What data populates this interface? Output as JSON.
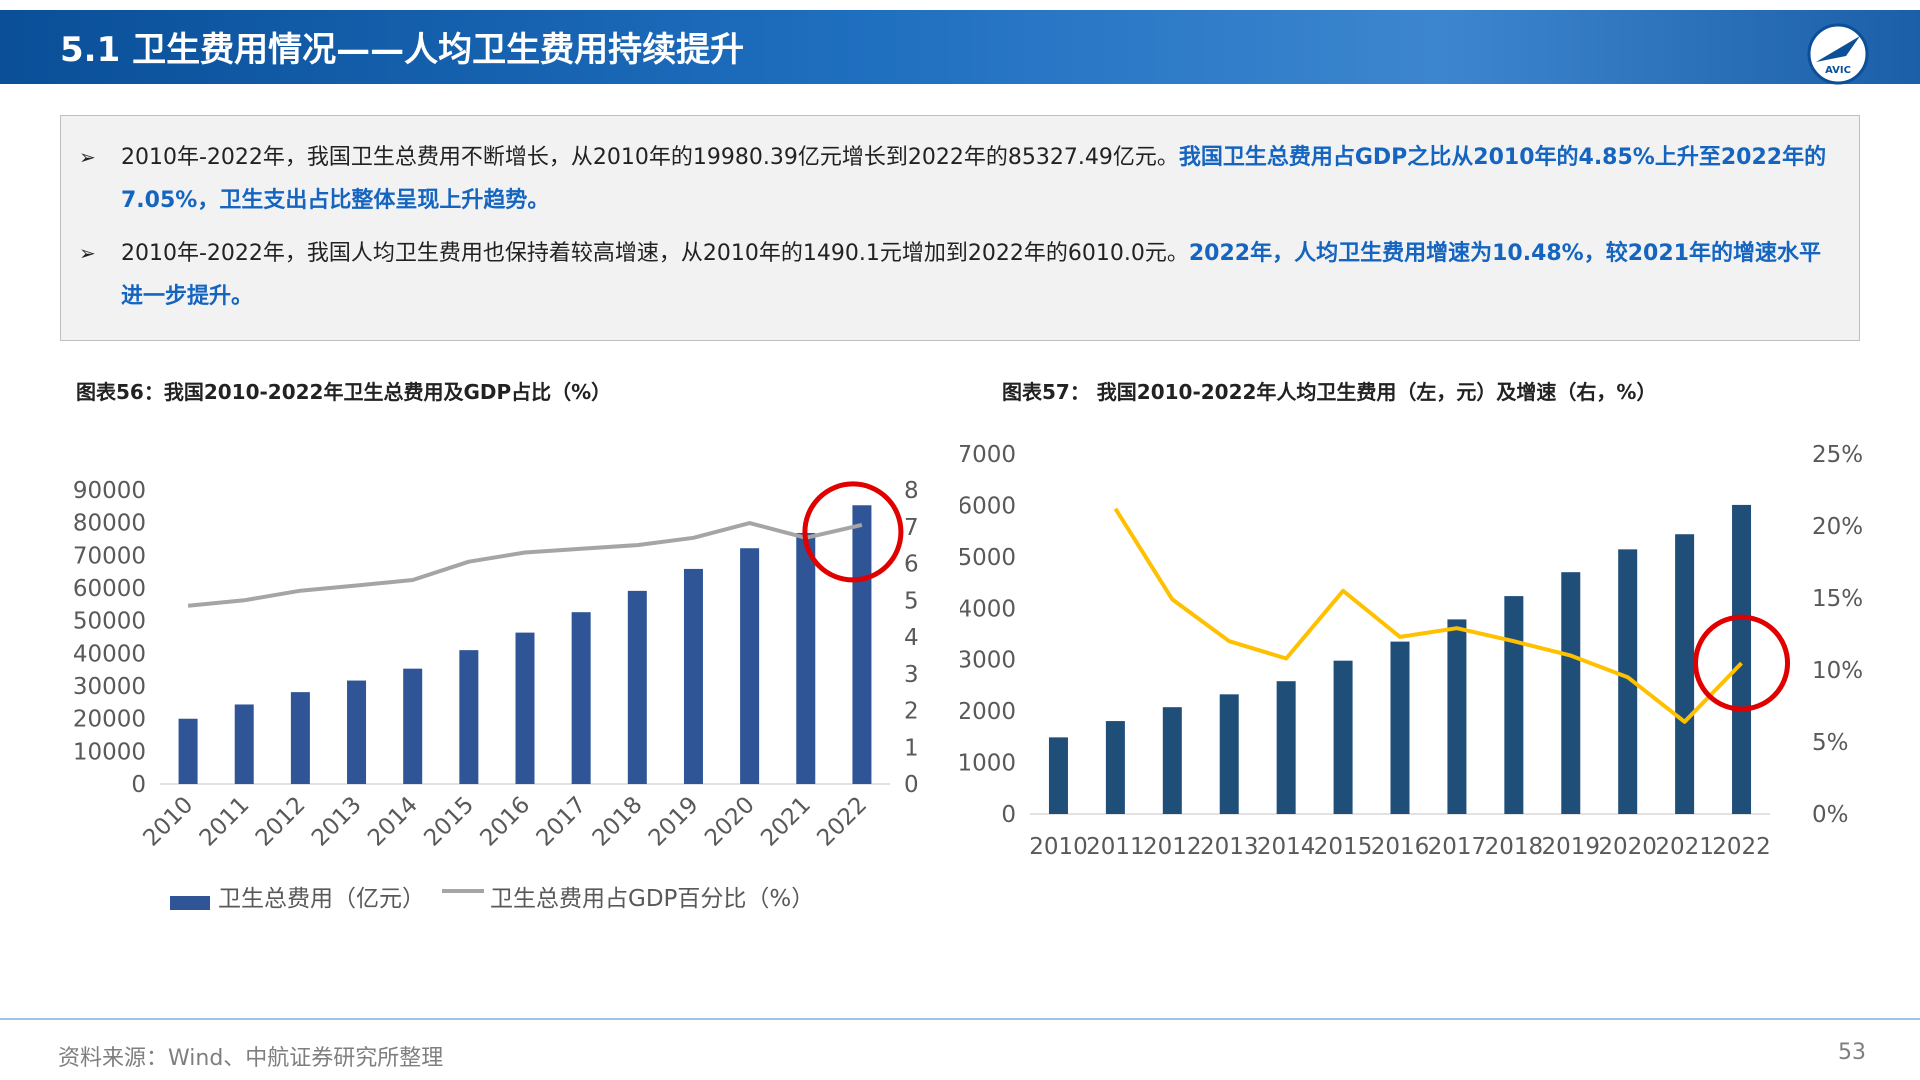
{
  "header": {
    "title": "5.1 卫生费用情况——人均卫生费用持续提升",
    "logo_text": "AVIC"
  },
  "summary": {
    "bullet_mark": "➢",
    "bullets": [
      {
        "normal": "2010年-2022年，我国卫生总费用不断增长，从2010年的19980.39亿元增长到2022年的85327.49亿元。",
        "highlight": "我国卫生总费用占GDP之比从2010年的4.85%上升至2022年的7.05%，卫生支出占比整体呈现上升趋势。"
      },
      {
        "normal": "2010年-2022年，我国人均卫生费用也保持着较高增速，从2010年的1490.1元增加到2022年的6010.0元。",
        "highlight": "2022年，人均卫生费用增速为10.48%，较2021年的增速水平进一步提升。"
      }
    ]
  },
  "colors": {
    "bar_blue": "#2f5597",
    "bar_navy": "#1f4e79",
    "line_gray": "#a5a5a5",
    "line_yellow": "#ffc000",
    "circle_red": "#e00000",
    "highlight": "#1565c0"
  },
  "chart_data": [
    {
      "type": "bar",
      "title": "图表56：我国2010-2022年卫生总费用及GDP占比（%）",
      "categories": [
        "2010",
        "2011",
        "2012",
        "2013",
        "2014",
        "2015",
        "2016",
        "2017",
        "2018",
        "2019",
        "2020",
        "2021",
        "2022"
      ],
      "series": [
        {
          "name": "卫生总费用（亿元）",
          "type": "bar",
          "axis": "left",
          "values": [
            19980.39,
            24346,
            28119,
            31669,
            35312,
            40975,
            46345,
            52598,
            59122,
            65841,
            72175,
            76845,
            85327.49
          ]
        },
        {
          "name": "卫生总费用占GDP百分比（%）",
          "type": "line",
          "axis": "right",
          "values": [
            4.85,
            5.0,
            5.26,
            5.4,
            5.55,
            6.05,
            6.3,
            6.4,
            6.5,
            6.7,
            7.1,
            6.7,
            7.05
          ]
        }
      ],
      "y_left": {
        "min": 0,
        "max": 90000,
        "ticks": [
          "0",
          "10000",
          "20000",
          "30000",
          "40000",
          "50000",
          "60000",
          "70000",
          "80000",
          "90000"
        ]
      },
      "y_right": {
        "min": 0,
        "max": 8,
        "ticks": [
          "0",
          "1",
          "2",
          "3",
          "4",
          "5",
          "6",
          "7",
          "8"
        ]
      },
      "legend": "bottom",
      "grid": false,
      "annotation": "red circle around 2022"
    },
    {
      "type": "bar",
      "title": "图表57： 我国2010-2022年人均卫生费用（左，元）及增速（右，%）",
      "categories": [
        "2010",
        "2011",
        "2012",
        "2013",
        "2014",
        "2015",
        "2016",
        "2017",
        "2018",
        "2019",
        "2020",
        "2021",
        "2022"
      ],
      "series": [
        {
          "type": "bar",
          "axis": "left",
          "values": [
            1490.1,
            1807,
            2077,
            2327,
            2582,
            2981,
            3352,
            3784,
            4237,
            4702,
            5146,
            5440,
            6010.0
          ]
        },
        {
          "type": "line",
          "axis": "right",
          "values": [
            null,
            21.2,
            14.9,
            12.0,
            10.8,
            15.5,
            12.3,
            12.9,
            12.0,
            11.0,
            9.5,
            6.4,
            10.48
          ]
        }
      ],
      "y_left": {
        "min": 0,
        "max": 7000,
        "ticks": [
          "0",
          "1000",
          "2000",
          "3000",
          "4000",
          "5000",
          "6000",
          "7000"
        ]
      },
      "y_right": {
        "min": 0,
        "max": 25,
        "ticks": [
          "0%",
          "5%",
          "10%",
          "15%",
          "20%",
          "25%"
        ]
      },
      "legend": "none",
      "grid": false,
      "annotation": "red circle around 2022"
    }
  ],
  "footer": {
    "source": "资料来源：Wind、中航证券研究所整理",
    "page": "53"
  }
}
